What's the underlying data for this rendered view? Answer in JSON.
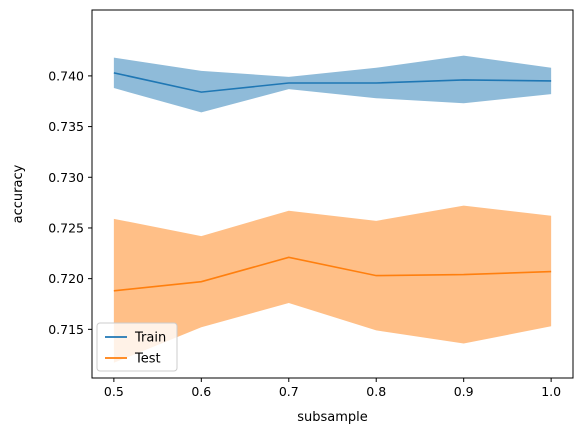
{
  "chart_data": {
    "type": "line",
    "xlabel": "subsample",
    "ylabel": "accuracy",
    "x": [
      0.5,
      0.6,
      0.7,
      0.8,
      0.9,
      1.0
    ],
    "xlim": [
      0.475,
      1.025
    ],
    "ylim": [
      0.7102,
      0.7465
    ],
    "xticks": [
      0.5,
      0.6,
      0.7,
      0.8,
      0.9,
      1.0
    ],
    "xtick_labels": [
      "0.5",
      "0.6",
      "0.7",
      "0.8",
      "0.9",
      "1.0"
    ],
    "yticks": [
      0.715,
      0.72,
      0.725,
      0.73,
      0.735,
      0.74
    ],
    "ytick_labels": [
      "0.715",
      "0.720",
      "0.725",
      "0.730",
      "0.735",
      "0.740"
    ],
    "grid": false,
    "legend_position": "lower-left",
    "series": [
      {
        "name": "Train",
        "color": "#1f77b4",
        "band_color": "#8fbbd9",
        "values": [
          0.7403,
          0.7384,
          0.7393,
          0.7393,
          0.7396,
          0.7395
        ],
        "upper": [
          0.7418,
          0.7405,
          0.7399,
          0.7408,
          0.742,
          0.7408
        ],
        "lower": [
          0.7388,
          0.7364,
          0.7387,
          0.7378,
          0.7373,
          0.7382
        ]
      },
      {
        "name": "Test",
        "color": "#ff7f0e",
        "band_color": "#ffbf87",
        "values": [
          0.7188,
          0.7197,
          0.7221,
          0.7203,
          0.7204,
          0.7207
        ],
        "upper": [
          0.7259,
          0.7242,
          0.7267,
          0.7257,
          0.7272,
          0.7262
        ],
        "lower": [
          0.7117,
          0.7152,
          0.7176,
          0.7149,
          0.7136,
          0.7153
        ]
      }
    ]
  }
}
